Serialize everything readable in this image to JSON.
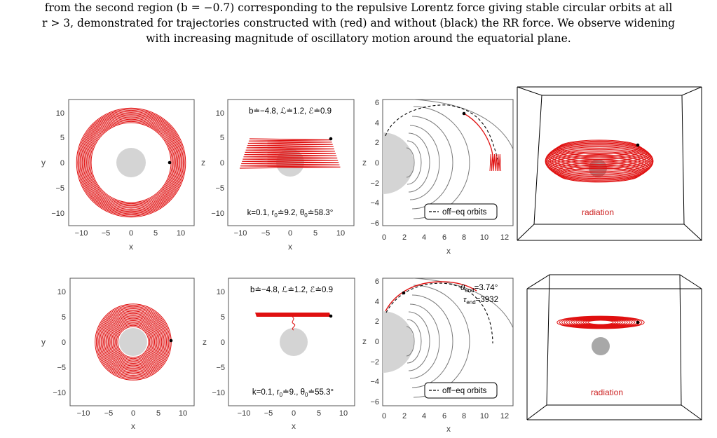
{
  "caption": {
    "line1": "from the second region (b = −0.7) corresponding to the repulsive Lorentz force giving stable circular orbits at all",
    "line2": "r > 3, demonstrated for trajectories constructed with (red) and without (black) the RR force. We observe widening",
    "line3": "with increasing magnitude of oscillatory motion around the equatorial plane."
  },
  "colors": {
    "trajectory_rr": "#e01010",
    "trajectory_no_rr": "#000000",
    "black_hole": "#d4d4d4",
    "black_hole_3d": "#a8a8a8",
    "grid_curves": "#7a7a7a"
  },
  "figure": {
    "axis_labels": {
      "x": "x",
      "y": "y",
      "z": "z"
    },
    "ticks_xy": [
      "−10",
      "−5",
      "0",
      "5",
      "10"
    ],
    "ticks_y": [
      "10",
      "5",
      "0",
      "−5",
      "−10"
    ],
    "ticks_x3": [
      "0",
      "2",
      "4",
      "6",
      "8",
      "10",
      "12"
    ],
    "ticks_y3": [
      "6",
      "4",
      "2",
      "0",
      "−2",
      "−4",
      "−6"
    ],
    "legend_label": "off−eq orbits",
    "radiation_label": "radiation",
    "rows": [
      {
        "params_top": "b≐−4.8, ℒ≐1.2, ℰ≐0.9",
        "params_bottom_prefix": "k=0.1, r",
        "params_bottom_r0": "≐9.2, θ",
        "params_bottom_theta0": "≐58.3°",
        "theta_end": "",
        "tau_end": ""
      },
      {
        "params_top": "b≐−4.8, ℒ≐1.2, ℰ≐0.9",
        "params_bottom_prefix": "k=0.1, r",
        "params_bottom_r0": "≐9., θ",
        "params_bottom_theta0": "≐55.3°",
        "theta_end": "=3.74°",
        "tau_end": "=3932"
      }
    ]
  }
}
